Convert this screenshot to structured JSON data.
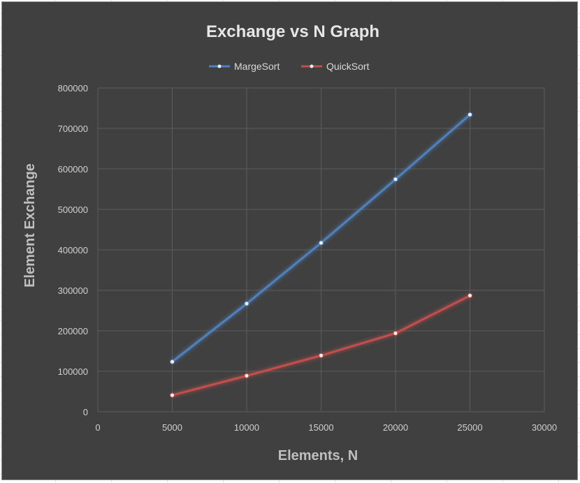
{
  "chart_data": {
    "type": "line",
    "title": "Exchange vs N Graph",
    "xlabel": "Elements, N",
    "ylabel": "Element Exchange",
    "xlim": [
      0,
      30000
    ],
    "ylim": [
      0,
      800000
    ],
    "x_ticks": [
      0,
      5000,
      10000,
      15000,
      20000,
      25000,
      30000
    ],
    "y_ticks": [
      0,
      100000,
      200000,
      300000,
      400000,
      500000,
      600000,
      700000,
      800000
    ],
    "grid": true,
    "legend_position": "top",
    "series": [
      {
        "name": "MargeSort",
        "color": "#4f81bd",
        "x": [
          5000,
          10000,
          15000,
          20000,
          25000
        ],
        "y": [
          123600,
          267200,
          417200,
          574300,
          734100
        ]
      },
      {
        "name": "QuickSort",
        "color": "#c0504d",
        "x": [
          5000,
          10000,
          15000,
          20000,
          25000
        ],
        "y": [
          41000,
          89000,
          139000,
          194000,
          287000
        ]
      }
    ]
  }
}
